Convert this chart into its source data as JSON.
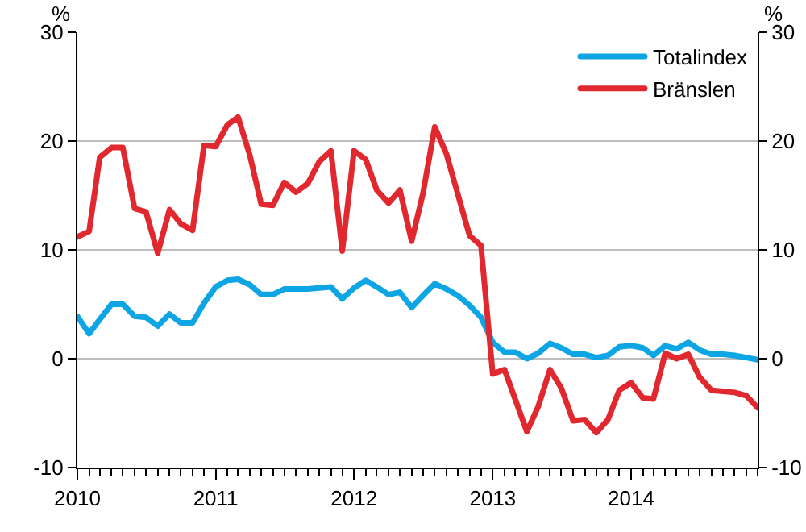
{
  "chart_data": {
    "type": "line",
    "ylabel": "%",
    "y2label": "%",
    "x": [
      "2010-01",
      "2010-02",
      "2010-03",
      "2010-04",
      "2010-05",
      "2010-06",
      "2010-07",
      "2010-08",
      "2010-09",
      "2010-10",
      "2010-11",
      "2010-12",
      "2011-01",
      "2011-02",
      "2011-03",
      "2011-04",
      "2011-05",
      "2011-06",
      "2011-07",
      "2011-08",
      "2011-09",
      "2011-10",
      "2011-11",
      "2011-12",
      "2012-01",
      "2012-02",
      "2012-03",
      "2012-04",
      "2012-05",
      "2012-06",
      "2012-07",
      "2012-08",
      "2012-09",
      "2012-10",
      "2012-11",
      "2012-12",
      "2013-01",
      "2013-02",
      "2013-03",
      "2013-04",
      "2013-05",
      "2013-06",
      "2013-07",
      "2013-08",
      "2013-09",
      "2013-10",
      "2013-11",
      "2013-12",
      "2014-01",
      "2014-02",
      "2014-03",
      "2014-04",
      "2014-05",
      "2014-06",
      "2014-07",
      "2014-08",
      "2014-09",
      "2014-10",
      "2014-11",
      "2014-12"
    ],
    "series": [
      {
        "name": "Totalindex",
        "color": "#0ea5e4",
        "values": [
          3.9,
          2.3,
          3.6,
          5.0,
          5.0,
          3.9,
          3.8,
          3.0,
          4.1,
          3.3,
          3.3,
          5.1,
          6.6,
          7.2,
          7.3,
          6.8,
          5.9,
          5.9,
          6.4,
          6.4,
          6.4,
          6.5,
          6.6,
          5.5,
          6.5,
          7.2,
          6.6,
          5.9,
          6.1,
          4.7,
          5.8,
          6.9,
          6.4,
          5.8,
          4.9,
          3.8,
          1.5,
          0.6,
          0.6,
          0.0,
          0.5,
          1.4,
          1.0,
          0.4,
          0.4,
          0.1,
          0.3,
          1.1,
          1.2,
          1.0,
          0.3,
          1.2,
          0.9,
          1.5,
          0.8,
          0.4,
          0.4,
          0.3,
          0.1,
          -0.1
        ]
      },
      {
        "name": "Bränslen",
        "color": "#e0282e",
        "values": [
          11.2,
          11.7,
          18.5,
          19.4,
          19.4,
          13.8,
          13.5,
          9.7,
          13.7,
          12.4,
          11.8,
          19.6,
          19.5,
          21.5,
          22.2,
          18.7,
          14.2,
          14.1,
          16.2,
          15.3,
          16.1,
          18.1,
          19.1,
          9.9,
          19.1,
          18.3,
          15.5,
          14.3,
          15.5,
          10.8,
          15.2,
          21.3,
          18.8,
          15.1,
          11.3,
          10.4,
          -1.4,
          -1.0,
          -3.7,
          -6.7,
          -4.4,
          -1.0,
          -2.7,
          -5.7,
          -5.6,
          -6.8,
          -5.6,
          -2.9,
          -2.2,
          -3.6,
          -3.7,
          0.5,
          0.0,
          0.4,
          -1.7,
          -2.9,
          -3.0,
          -3.1,
          -3.4,
          -4.5
        ]
      }
    ],
    "xlim": [
      "2010-01",
      "2014-12"
    ],
    "xticks": [
      {
        "value": "2010-01",
        "label": "2010"
      },
      {
        "value": "2011-01",
        "label": "2011"
      },
      {
        "value": "2012-01",
        "label": "2012"
      },
      {
        "value": "2013-01",
        "label": "2013"
      },
      {
        "value": "2014-01",
        "label": "2014"
      }
    ],
    "ylim": [
      -10,
      30
    ],
    "yticks": [
      -10,
      0,
      10,
      20,
      30
    ],
    "y2lim": [
      -10,
      30
    ],
    "y2ticks": [
      -10,
      0,
      10,
      20,
      30
    ],
    "grid": "y",
    "legend": "top right",
    "marker": "none",
    "line_style": "solid"
  }
}
